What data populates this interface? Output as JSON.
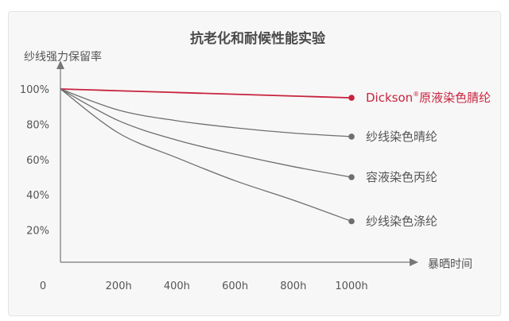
{
  "chart_data": {
    "type": "line",
    "title": "抗老化和耐候性能实验",
    "ylabel": "纱线强力保留率",
    "xlabel": "暴晒时间",
    "origin_label": "0",
    "x_ticks": [
      "200h",
      "400h",
      "600h",
      "800h",
      "1000h"
    ],
    "y_ticks": [
      "100%",
      "80%",
      "60%",
      "40%",
      "20%"
    ],
    "x": [
      0,
      200,
      400,
      600,
      800,
      1000
    ],
    "xlim": [
      0,
      1000
    ],
    "ylim": [
      0,
      100
    ],
    "grid": false,
    "series": [
      {
        "name_brand": "Dickson",
        "name_mark": "®",
        "name_rest": "原液染色腈纶",
        "color": "#c8233e",
        "values": [
          100,
          99,
          98,
          97,
          96,
          95
        ]
      },
      {
        "name": "纱线染色晴纶",
        "color": "#6e6e6e",
        "values": [
          100,
          88,
          82,
          78,
          75,
          73
        ]
      },
      {
        "name": "容液染色丙纶",
        "color": "#6e6e6e",
        "values": [
          100,
          82,
          71,
          63,
          56,
          50
        ]
      },
      {
        "name": "纱线染色涤纶",
        "color": "#6e6e6e",
        "values": [
          100,
          75,
          61,
          48,
          37,
          25
        ]
      }
    ]
  }
}
